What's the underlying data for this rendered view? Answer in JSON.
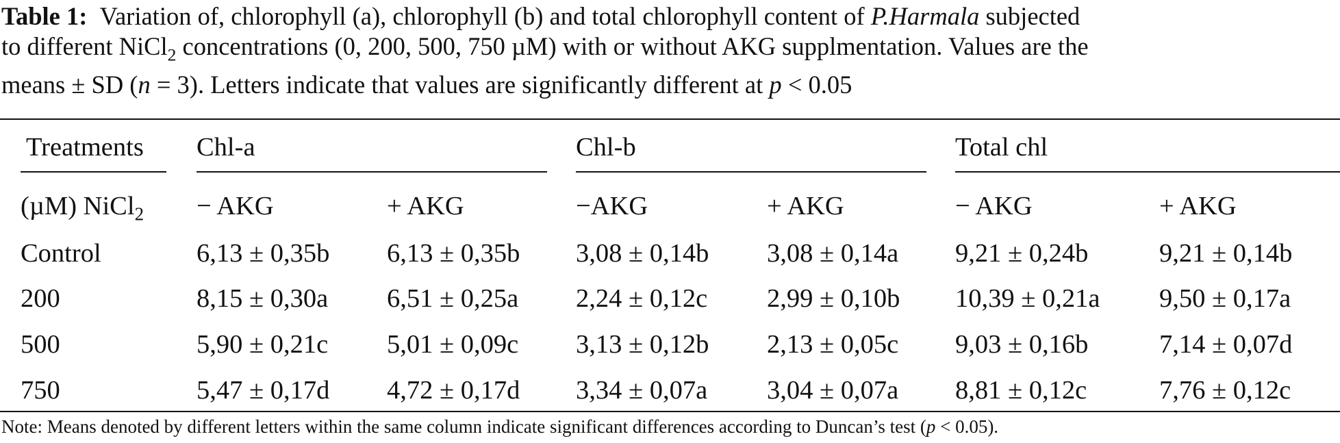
{
  "caption": {
    "label": "Table 1:",
    "line1_a": "Variation of, chlorophyll (a), chlorophyll (b) and total chlorophyll content of ",
    "line1_species": "P.Harmala",
    "line1_b": " subjected",
    "line2_a": "to different NiCl",
    "line2_sub": "2",
    "line2_b": " concentrations (0, 200, 500, 750 µM) with or without AKG supplmentation. Values are the",
    "line3_a": "means ± SD (",
    "line3_n": "n",
    "line3_b": " = 3). Letters indicate that values are significantly different at ",
    "line3_p": "p",
    "line3_c": " < 0.05"
  },
  "header": {
    "treatments": "Treatments",
    "unit_a": "(µM) NiCl",
    "unit_sub": "2",
    "groups": [
      "Chl-a",
      "Chl-b",
      "Total chl"
    ],
    "subcols": [
      "− AKG",
      "+ AKG",
      "−AKG",
      "+ AKG",
      "− AKG",
      "+ AKG"
    ]
  },
  "rows": [
    {
      "label": "Control",
      "values": [
        "6,13 ± 0,35b",
        "6,13 ± 0,35b",
        "3,08 ± 0,14b",
        "3,08 ± 0,14a",
        "9,21 ± 0,24b",
        "9,21 ± 0,14b"
      ]
    },
    {
      "label": "200",
      "values": [
        "8,15 ± 0,30a",
        "6,51 ± 0,25a",
        "2,24 ± 0,12c",
        "2,99 ± 0,10b",
        "10,39 ± 0,21a",
        "9,50 ± 0,17a"
      ]
    },
    {
      "label": "500",
      "values": [
        "5,90 ± 0,21c",
        "5,01 ± 0,09c",
        "3,13 ± 0,12b",
        "2,13 ± 0,05c",
        "9,03 ± 0,16b",
        "7,14 ± 0,07d"
      ]
    },
    {
      "label": "750",
      "values": [
        "5,47 ± 0,17d",
        "4,72 ± 0,17d",
        "3,34 ± 0,07a",
        "3,04 ± 0,07a",
        "8,81 ± 0,12c",
        "7,76 ± 0,12c"
      ]
    }
  ],
  "note": {
    "a": "Note: Means denoted by different letters within the same column indicate significant differences according to Duncan’s test (",
    "p": "p",
    "b": " < 0.05)."
  }
}
